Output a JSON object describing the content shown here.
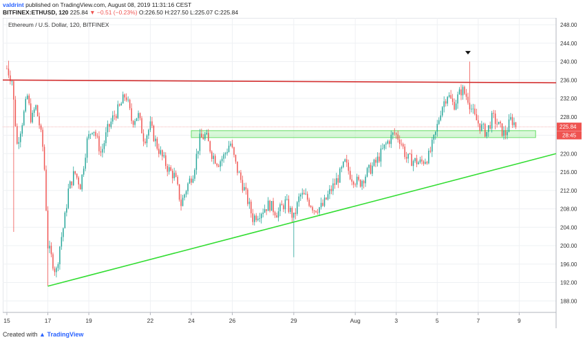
{
  "header": {
    "user": "valdrint",
    "published_text": "published on TradingView.com, August 08, 2019 11:31:16 CEST"
  },
  "symbol_bar": {
    "symbol": "BITFINEX:ETHUSD, 120",
    "last": "225.84",
    "change": "▼ −0.51 (−0.23%)",
    "ohlc": "O:226.50 H:227.50 L:225.07 C:225.84"
  },
  "footer": {
    "prefix": "Created with",
    "brand": "TradingView"
  },
  "colors": {
    "bull": "#26a69a",
    "bear": "#ef5350",
    "resistance": "#d32f2f",
    "trendline": "#33dd33",
    "zone_border": "#66dd66",
    "zone_fill": "rgba(170,240,170,0.45)",
    "grid": "#eef0f3",
    "axis_text": "#333333"
  },
  "chart_data": {
    "type": "candlestick",
    "title": "Ethereum / U.S. Dollar, 120, BITFINEX",
    "x_ticks": [
      {
        "label": "15",
        "day": 0
      },
      {
        "label": "17",
        "day": 2
      },
      {
        "label": "19",
        "day": 4
      },
      {
        "label": "22",
        "day": 7
      },
      {
        "label": "24",
        "day": 9
      },
      {
        "label": "26",
        "day": 11
      },
      {
        "label": "29",
        "day": 14
      },
      {
        "label": "Aug",
        "day": 17
      },
      {
        "label": "3",
        "day": 19
      },
      {
        "label": "5",
        "day": 21
      },
      {
        "label": "7",
        "day": 23
      },
      {
        "label": "9",
        "day": 25
      }
    ],
    "xlim": [
      -0.2,
      26.8
    ],
    "y_ticks": [
      188,
      192,
      196,
      200,
      204,
      208,
      212,
      216,
      220,
      224,
      228,
      232,
      236,
      240,
      244,
      248
    ],
    "y_tick_labels": [
      "188.00",
      "192.00",
      "196.00",
      "200.00",
      "204.00",
      "208.00",
      "212.00",
      "216.00",
      "220.00",
      "224.00",
      "228.00",
      "232.00",
      "236.00",
      "240.00",
      "244.00",
      "248.00"
    ],
    "ylim": [
      185.5,
      249.5
    ],
    "resistance_price": 236,
    "resistance_end_price": 235.4,
    "support_zone": [
      223.5,
      225
    ],
    "trendline": {
      "start": [
        2.0,
        191.2
      ],
      "end": [
        26.8,
        220
      ]
    },
    "current_price": 225.84,
    "current_price_label": "225.84",
    "countdown_label": "28:45",
    "marker_day": 22.5,
    "keypoints": [
      [
        0.0,
        238.5
      ],
      [
        0.25,
        236.0
      ],
      [
        0.5,
        222.0
      ],
      [
        0.8,
        228.0
      ],
      [
        1.0,
        232.5
      ],
      [
        1.2,
        227.0
      ],
      [
        1.4,
        230.5
      ],
      [
        1.6,
        226.0
      ],
      [
        1.8,
        220.0
      ],
      [
        2.0,
        200.0
      ],
      [
        2.2,
        197.0
      ],
      [
        2.4,
        194.0
      ],
      [
        2.6,
        200.5
      ],
      [
        2.8,
        205.0
      ],
      [
        3.0,
        212.0
      ],
      [
        3.3,
        216.0
      ],
      [
        3.6,
        213.0
      ],
      [
        3.9,
        222.5
      ],
      [
        4.2,
        226.0
      ],
      [
        4.6,
        220.0
      ],
      [
        4.9,
        225.0
      ],
      [
        5.2,
        228.0
      ],
      [
        5.5,
        230.0
      ],
      [
        5.8,
        233.0
      ],
      [
        6.1,
        227.0
      ],
      [
        6.4,
        228.5
      ],
      [
        6.7,
        223.0
      ],
      [
        7.0,
        226.0
      ],
      [
        7.3,
        222.0
      ],
      [
        7.6,
        219.0
      ],
      [
        7.9,
        216.5
      ],
      [
        8.2,
        215.0
      ],
      [
        8.5,
        209.0
      ],
      [
        8.8,
        213.0
      ],
      [
        9.1,
        216.0
      ],
      [
        9.4,
        223.0
      ],
      [
        9.7,
        224.0
      ],
      [
        10.0,
        220.0
      ],
      [
        10.3,
        218.0
      ],
      [
        10.6,
        219.5
      ],
      [
        10.9,
        222.5
      ],
      [
        11.2,
        217.0
      ],
      [
        11.6,
        212.0
      ],
      [
        12.0,
        206.0
      ],
      [
        12.4,
        207.5
      ],
      [
        12.8,
        209.0
      ],
      [
        13.2,
        207.0
      ],
      [
        13.6,
        209.5
      ],
      [
        14.0,
        206.0
      ],
      [
        14.3,
        211.0
      ],
      [
        14.6,
        210.5
      ],
      [
        15.0,
        208.0
      ],
      [
        15.4,
        208.5
      ],
      [
        15.8,
        212.0
      ],
      [
        16.2,
        215.0
      ],
      [
        16.5,
        218.0
      ],
      [
        16.8,
        215.0
      ],
      [
        17.2,
        213.5
      ],
      [
        17.6,
        216.0
      ],
      [
        18.0,
        218.0
      ],
      [
        18.5,
        222.0
      ],
      [
        18.9,
        224.5
      ],
      [
        19.2,
        223.0
      ],
      [
        19.5,
        219.0
      ],
      [
        19.8,
        218.5
      ],
      [
        20.2,
        218.0
      ],
      [
        20.6,
        219.5
      ],
      [
        20.9,
        224.0
      ],
      [
        21.2,
        230.0
      ],
      [
        21.5,
        233.0
      ],
      [
        21.8,
        230.5
      ],
      [
        22.2,
        234.0
      ],
      [
        22.5,
        232.0
      ],
      [
        22.8,
        228.0
      ],
      [
        23.1,
        226.0
      ],
      [
        23.4,
        224.5
      ],
      [
        23.7,
        228.0
      ],
      [
        24.0,
        226.0
      ],
      [
        24.3,
        224.0
      ],
      [
        24.6,
        227.5
      ],
      [
        24.9,
        225.84
      ]
    ]
  }
}
